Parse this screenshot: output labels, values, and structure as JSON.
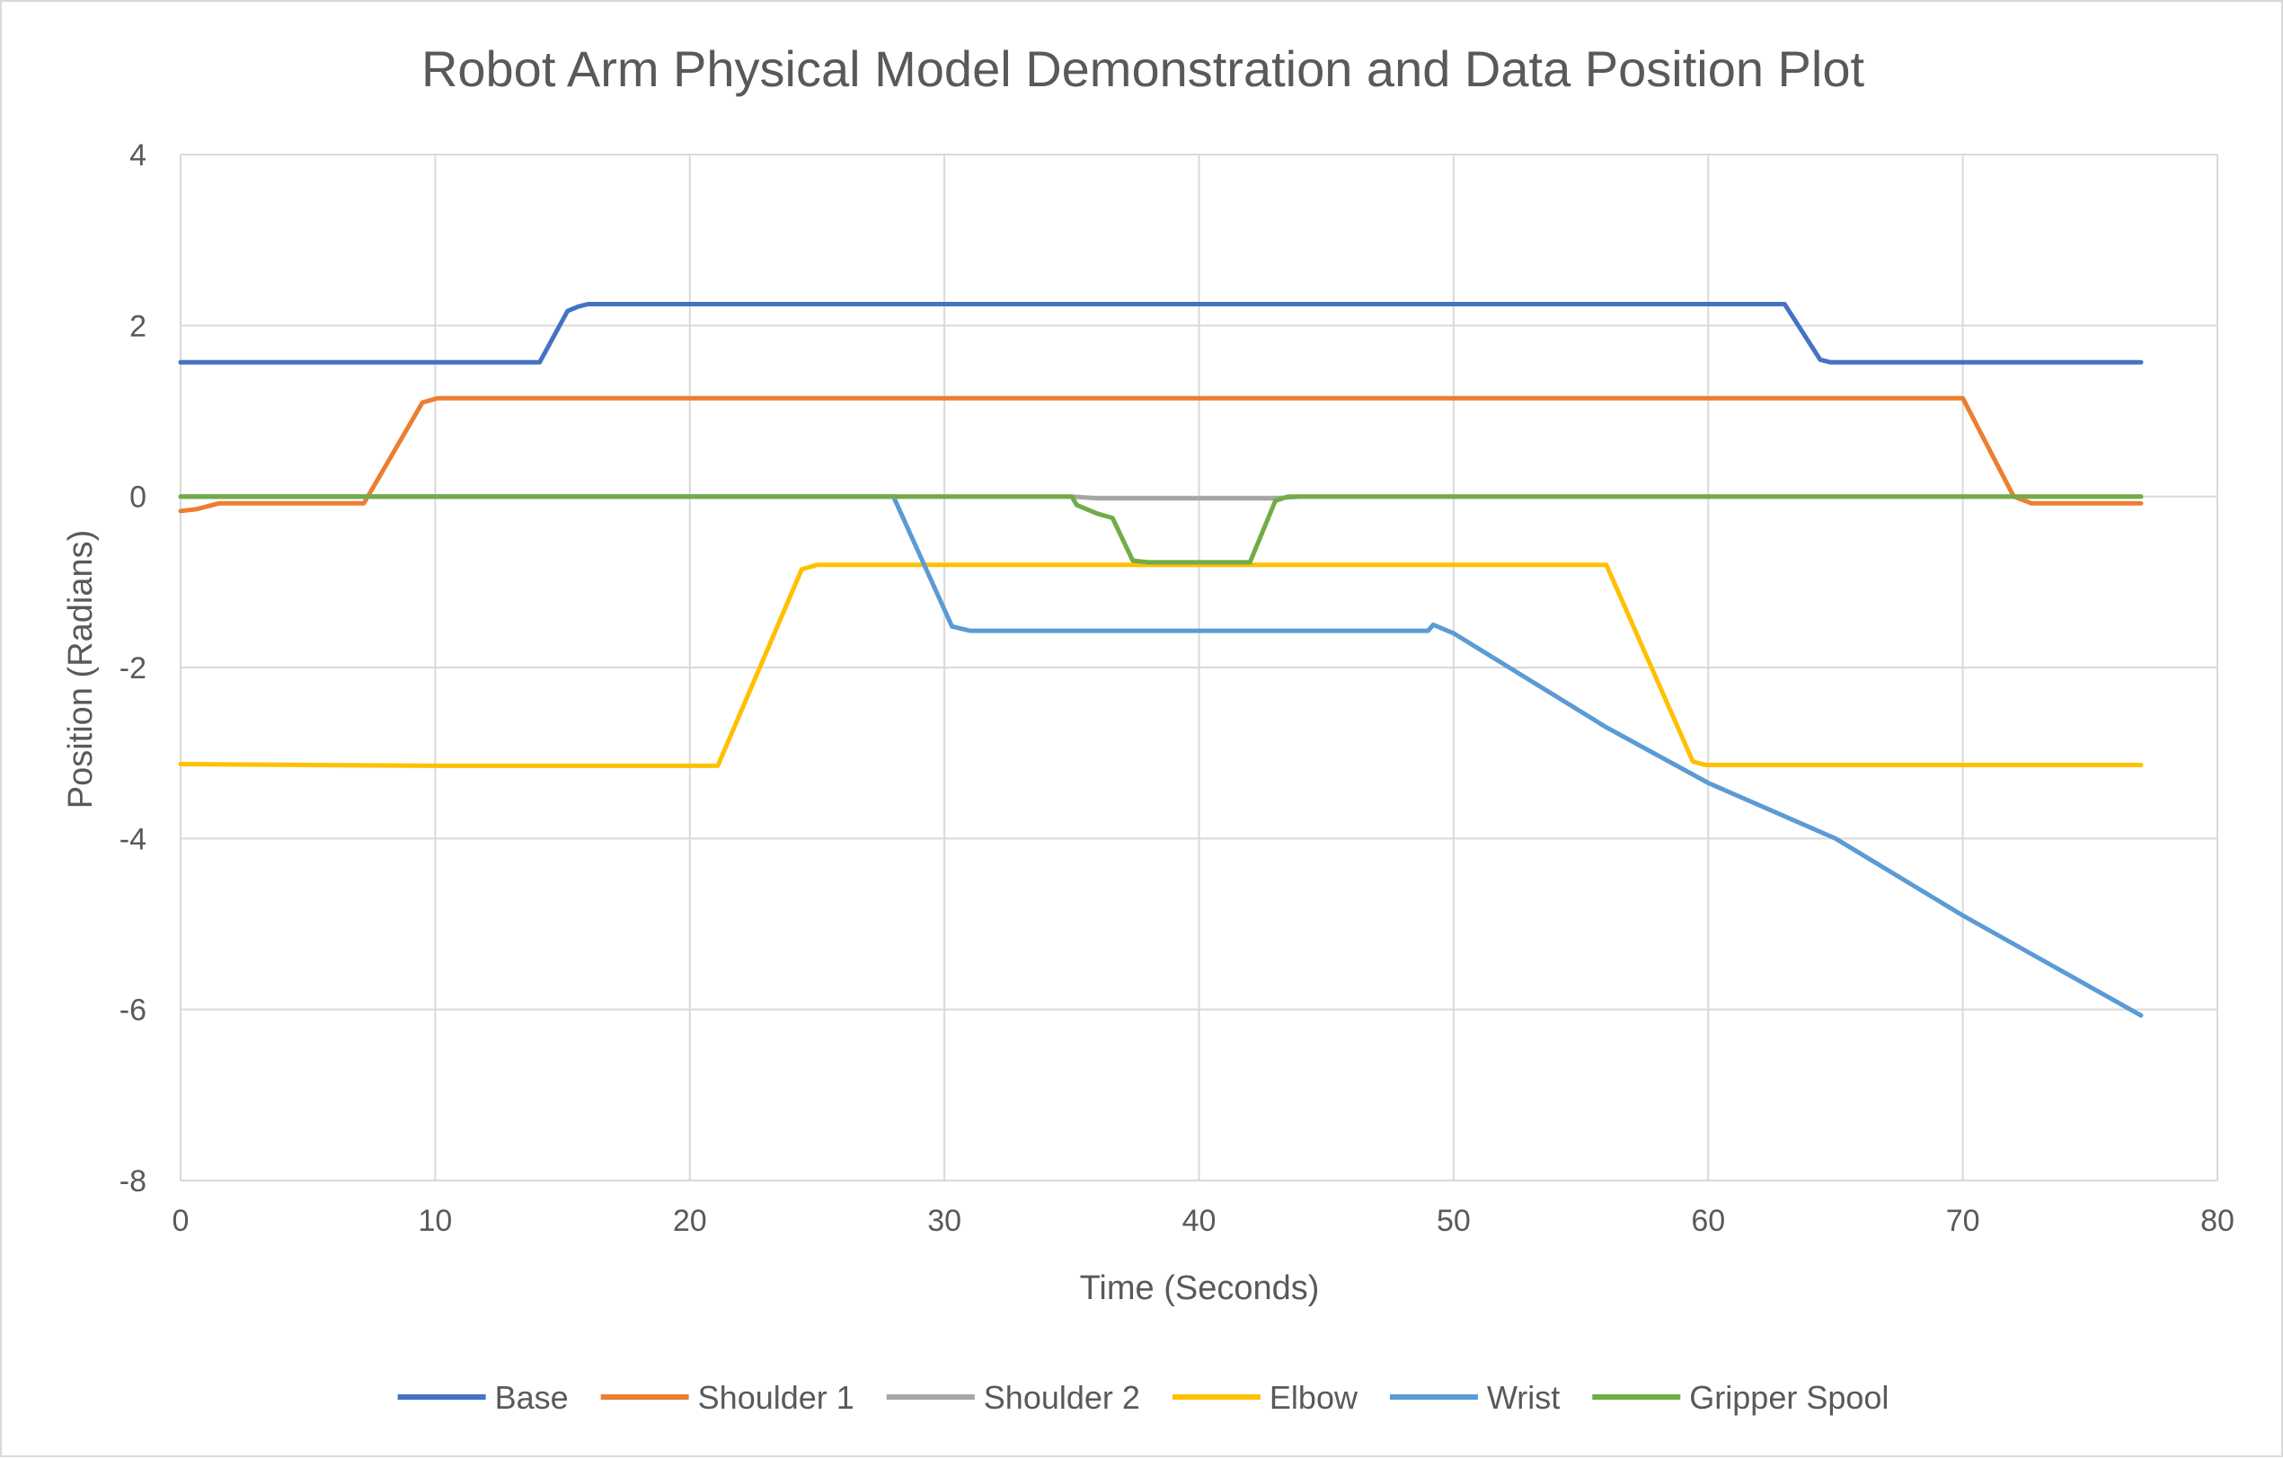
{
  "chart_data": {
    "type": "line",
    "title": "Robot Arm Physical Model Demonstration and Data Position Plot",
    "xlabel": "Time (Seconds)",
    "ylabel": "Position (Radians)",
    "xlim": [
      0,
      80
    ],
    "ylim": [
      -8,
      4
    ],
    "x_ticks": [
      "0",
      "10",
      "20",
      "30",
      "40",
      "50",
      "60",
      "70",
      "80"
    ],
    "y_ticks": [
      "4",
      "2",
      "0",
      "-2",
      "-4",
      "-6",
      "-8"
    ],
    "grid": true,
    "legend_position": "bottom",
    "series": [
      {
        "name": "Base",
        "color": "#4472C4",
        "points": [
          [
            0,
            1.57
          ],
          [
            14.1,
            1.57
          ],
          [
            15.2,
            2.17
          ],
          [
            15.6,
            2.22
          ],
          [
            16,
            2.25
          ],
          [
            63,
            2.25
          ],
          [
            64.4,
            1.6
          ],
          [
            64.8,
            1.57
          ],
          [
            77,
            1.57
          ]
        ]
      },
      {
        "name": "Shoulder 1",
        "color": "#ED7D31",
        "points": [
          [
            0,
            -0.17
          ],
          [
            0.6,
            -0.15
          ],
          [
            1.5,
            -0.08
          ],
          [
            7.2,
            -0.08
          ],
          [
            9.5,
            1.1
          ],
          [
            10.1,
            1.15
          ],
          [
            70,
            1.15
          ],
          [
            72,
            0.0
          ],
          [
            72.7,
            -0.08
          ],
          [
            77,
            -0.08
          ]
        ]
      },
      {
        "name": "Shoulder 2",
        "color": "#A5A5A5",
        "points": [
          [
            0,
            0.0
          ],
          [
            35,
            0.0
          ],
          [
            36,
            -0.02
          ],
          [
            43,
            -0.02
          ],
          [
            44,
            0.0
          ],
          [
            77,
            0.0
          ]
        ]
      },
      {
        "name": "Elbow",
        "color": "#FFC000",
        "points": [
          [
            0,
            -3.13
          ],
          [
            10,
            -3.15
          ],
          [
            21.1,
            -3.15
          ],
          [
            24.4,
            -0.85
          ],
          [
            25,
            -0.8
          ],
          [
            56,
            -0.8
          ],
          [
            59.4,
            -3.1
          ],
          [
            59.9,
            -3.14
          ],
          [
            77,
            -3.14
          ]
        ]
      },
      {
        "name": "Wrist",
        "color": "#5B9BD5",
        "points": [
          [
            0,
            0.0
          ],
          [
            28,
            0.0
          ],
          [
            30.3,
            -1.52
          ],
          [
            31,
            -1.57
          ],
          [
            49,
            -1.57
          ],
          [
            49.2,
            -1.5
          ],
          [
            50,
            -1.6
          ],
          [
            56,
            -2.7
          ],
          [
            60,
            -3.35
          ],
          [
            65,
            -4.0
          ],
          [
            70,
            -4.9
          ],
          [
            77,
            -6.07
          ]
        ]
      },
      {
        "name": "Gripper Spool",
        "color": "#70AD47",
        "points": [
          [
            0,
            0.0
          ],
          [
            35,
            0.0
          ],
          [
            35.2,
            -0.1
          ],
          [
            36,
            -0.2
          ],
          [
            36.6,
            -0.25
          ],
          [
            37.4,
            -0.75
          ],
          [
            38,
            -0.77
          ],
          [
            42,
            -0.77
          ],
          [
            43,
            -0.05
          ],
          [
            43.5,
            0.0
          ],
          [
            77,
            0.0
          ]
        ]
      }
    ]
  }
}
